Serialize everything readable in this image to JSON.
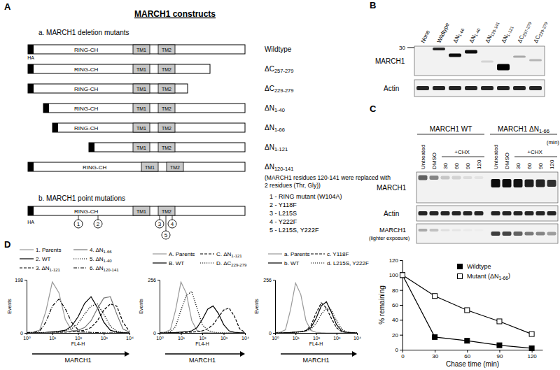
{
  "panel_labels": [
    "A",
    "B",
    "C",
    "D"
  ],
  "constructs": {
    "title": "MARCH1 constructs",
    "deletion_heading": "a. MARCH1 deletion mutants",
    "tag": "HA",
    "domains": [
      "RING-CH",
      "TM1",
      "TM2"
    ],
    "deletion_mutants": [
      "Wildtype",
      "ΔC257-279",
      "ΔC229-279",
      "ΔN1-40",
      "ΔN1-66",
      "ΔN1-121",
      "ΔN120-141"
    ],
    "note": [
      "(MARCH1 residues 120-141 were replaced with",
      "2 residues (Thr, Gly))"
    ],
    "point_heading": "b. MARCH1 point mutations",
    "point_markers": [
      1,
      2,
      3,
      4,
      5
    ],
    "point_mutations": [
      "1 - RING mutant (W104A)",
      "2 - Y118F",
      "3 - L215S",
      "4 - Y222F",
      "5 - L215S, Y222F"
    ]
  },
  "blot_b": {
    "lanes": [
      "None",
      "Wildtype",
      "ΔN1-66",
      "ΔN1-40",
      "ΔN120-141",
      "ΔN1-121",
      "ΔC257-279",
      "ΔC229-279"
    ],
    "rows": [
      "MARCH1",
      "Actin"
    ],
    "size_marker": "30"
  },
  "blot_c": {
    "groups": [
      "MARCH1 WT",
      "MARCH1 ΔN1-66"
    ],
    "lanes": [
      "Untreated",
      "DMSO",
      "30",
      "60",
      "90",
      "120"
    ],
    "treatment": "+CHX",
    "unit": "(min)",
    "rows": [
      "MARCH1",
      "Actin",
      "MARCH1"
    ],
    "row_note": "(lighter exposure)"
  },
  "chart_data": [
    {
      "type": "line",
      "xlabel": "Chase time (min)",
      "ylabel": "% remaining",
      "x": [
        0,
        30,
        60,
        90,
        120
      ],
      "xlim": [
        0,
        130
      ],
      "xticks": [
        0,
        30,
        60,
        90,
        120
      ],
      "ylim": [
        0,
        120
      ],
      "yticks": [
        0,
        20,
        40,
        60,
        80,
        100,
        120
      ],
      "grid": false,
      "legend": "top-right",
      "series": [
        {
          "name": "Wildtype",
          "color": "#000000",
          "marker": "square",
          "line_style": "solid",
          "values": [
            100,
            17,
            12,
            6,
            2
          ]
        },
        {
          "name": "Mutant (ΔN1-66)",
          "color": "#000000",
          "marker": "square-open",
          "line_style": "solid",
          "values": [
            100,
            72,
            53,
            38,
            21
          ]
        }
      ]
    },
    {
      "type": "line",
      "log": "x",
      "xlabel": "FL4-H",
      "ylabel": "Events",
      "annotation": "MARCH1",
      "x": [
        1,
        1.8,
        3.2,
        5.6,
        10,
        18,
        32,
        56,
        100,
        180,
        320,
        560,
        1000,
        1800,
        3200,
        5600,
        10000
      ],
      "xlim": [
        1,
        10000
      ],
      "xticks": [
        {
          "value": 1,
          "label": "10⁰"
        },
        {
          "value": 10,
          "label": "10¹"
        },
        {
          "value": 100,
          "label": "10²"
        },
        {
          "value": 1000,
          "label": "10³"
        },
        {
          "value": 10000,
          "label": "10⁴"
        }
      ],
      "ylim": [
        0,
        198
      ],
      "yticks": [
        0,
        198
      ],
      "grid": false,
      "legend": "above",
      "series": [
        {
          "name": "1. Parents",
          "color": "#999999",
          "line_style": "solid",
          "values": [
            2,
            3,
            10,
            80,
            190,
            150,
            50,
            10,
            3,
            1,
            0,
            0,
            0,
            0,
            0,
            0,
            0
          ]
        },
        {
          "name": "2. WT",
          "color": "#000000",
          "line_style": "solid",
          "values": [
            0,
            0,
            1,
            2,
            4,
            6,
            10,
            25,
            60,
            110,
            135,
            95,
            40,
            10,
            3,
            1,
            0
          ]
        },
        {
          "name": "3. ΔN1-121",
          "color": "#000000",
          "line_style": "dashed",
          "values": [
            0,
            0,
            0,
            1,
            2,
            2,
            3,
            4,
            6,
            10,
            20,
            45,
            85,
            108,
            100,
            40,
            5
          ]
        },
        {
          "name": "4. ΔN1-66",
          "color": "#777777",
          "line_style": "solid",
          "values": [
            0,
            0,
            0,
            1,
            2,
            3,
            4,
            6,
            10,
            20,
            45,
            90,
            130,
            135,
            70,
            15,
            2
          ]
        },
        {
          "name": "5. ΔN1-40",
          "color": "#000000",
          "line_style": "dotted",
          "values": [
            0,
            0,
            1,
            2,
            3,
            5,
            8,
            15,
            35,
            70,
            100,
            108,
            70,
            25,
            6,
            2,
            0
          ]
        },
        {
          "name": "6. ΔN120-141",
          "color": "#000000",
          "line_style": "dashdot",
          "values": [
            1,
            2,
            6,
            40,
            100,
            126,
            90,
            40,
            12,
            4,
            2,
            1,
            0,
            0,
            0,
            0,
            0
          ]
        }
      ]
    },
    {
      "type": "line",
      "log": "x",
      "xlabel": "FL4-H",
      "ylabel": "Events",
      "annotation": "MARCH1",
      "x": [
        1,
        1.8,
        3.2,
        5.6,
        10,
        18,
        32,
        56,
        100,
        180,
        320,
        560,
        1000,
        1800,
        3200,
        5600,
        10000
      ],
      "xlim": [
        1,
        10000
      ],
      "xticks": [
        {
          "value": 1,
          "label": "10⁰"
        },
        {
          "value": 10,
          "label": "10¹"
        },
        {
          "value": 100,
          "label": "10²"
        },
        {
          "value": 1000,
          "label": "10³"
        },
        {
          "value": 10000,
          "label": "10⁴"
        }
      ],
      "ylim": [
        0,
        256
      ],
      "yticks": [
        0,
        256
      ],
      "grid": false,
      "legend": "above",
      "series": [
        {
          "name": "A. Parents",
          "color": "#999999",
          "line_style": "solid",
          "values": [
            2,
            4,
            15,
            110,
            245,
            190,
            60,
            12,
            3,
            1,
            0,
            0,
            0,
            0,
            0,
            0,
            0
          ]
        },
        {
          "name": "B. WT",
          "color": "#000000",
          "line_style": "solid",
          "values": [
            0,
            0,
            1,
            2,
            4,
            6,
            10,
            25,
            65,
            115,
            130,
            95,
            40,
            10,
            3,
            1,
            0
          ]
        },
        {
          "name": "C. ΔN1-121",
          "color": "#000000",
          "line_style": "dashed",
          "values": [
            0,
            0,
            0,
            1,
            2,
            3,
            4,
            6,
            10,
            20,
            40,
            75,
            110,
            120,
            80,
            20,
            3
          ]
        },
        {
          "name": "D. ΔC229-279",
          "color": "#000000",
          "line_style": "dotted",
          "values": [
            1,
            2,
            5,
            30,
            110,
            180,
            200,
            120,
            40,
            12,
            4,
            1,
            0,
            0,
            0,
            0,
            0
          ]
        }
      ]
    },
    {
      "type": "line",
      "log": "x",
      "xlabel": "FL4-H",
      "ylabel": "Events",
      "annotation": "MARCH1",
      "x": [
        1,
        1.8,
        3.2,
        5.6,
        10,
        18,
        32,
        56,
        100,
        180,
        320,
        560,
        1000,
        1800,
        3200,
        5600,
        10000
      ],
      "xlim": [
        1,
        10000
      ],
      "xticks": [
        {
          "value": 1,
          "label": "10⁰"
        },
        {
          "value": 10,
          "label": "10¹"
        },
        {
          "value": 100,
          "label": "10²"
        },
        {
          "value": 1000,
          "label": "10³"
        },
        {
          "value": 10000,
          "label": "10⁴"
        }
      ],
      "ylim": [
        0,
        256
      ],
      "yticks": [
        0,
        256
      ],
      "grid": false,
      "legend": "above",
      "series": [
        {
          "name": "a. Parents",
          "color": "#999999",
          "line_style": "solid",
          "values": [
            2,
            4,
            15,
            110,
            240,
            185,
            60,
            12,
            3,
            1,
            0,
            0,
            0,
            0,
            0,
            0,
            0
          ]
        },
        {
          "name": "b. WT",
          "color": "#000000",
          "line_style": "solid",
          "values": [
            0,
            0,
            1,
            2,
            4,
            6,
            10,
            25,
            70,
            130,
            150,
            100,
            40,
            10,
            3,
            1,
            0
          ]
        },
        {
          "name": "c. Y118F",
          "color": "#000000",
          "line_style": "dashed",
          "values": [
            0,
            0,
            1,
            2,
            4,
            6,
            12,
            35,
            95,
            145,
            120,
            70,
            25,
            6,
            2,
            1,
            0
          ]
        },
        {
          "name": "d. L215S, Y222F",
          "color": "#000000",
          "line_style": "dotted",
          "values": [
            0,
            0,
            1,
            2,
            3,
            5,
            8,
            18,
            45,
            90,
            120,
            110,
            60,
            18,
            4,
            1,
            0
          ]
        }
      ]
    }
  ]
}
